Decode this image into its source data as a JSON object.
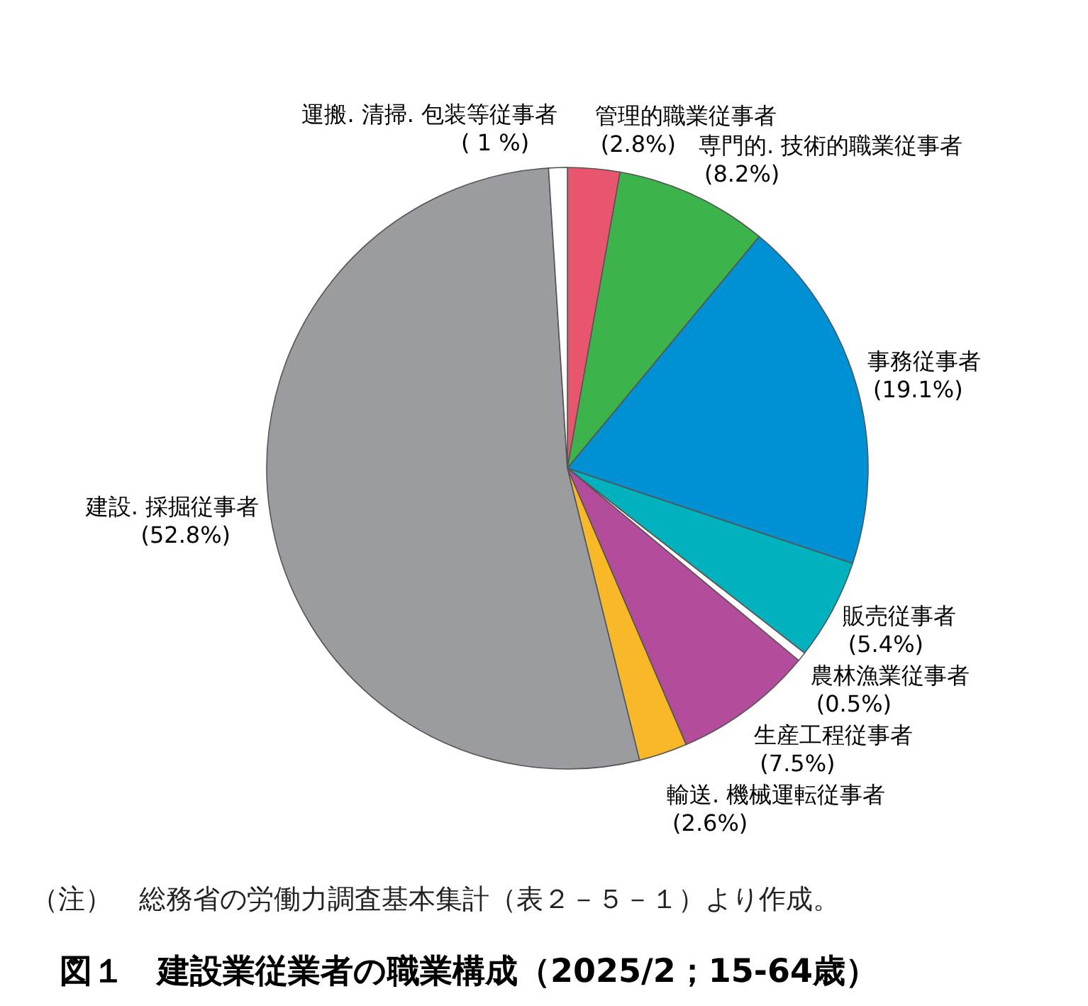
{
  "chart_data": {
    "type": "pie",
    "title": "図１　建設業従業者の職業構成（2025/2；15-64歳）",
    "annotations": [
      "（注）　総務省の労働力調査基本集計（表２－５－１）より作成。"
    ],
    "categories": [
      "管理的職業従事者",
      "専門的. 技術的職業従事者",
      "事務従事者",
      "販売従事者",
      "農林漁業従事者",
      "生産工程従事者",
      "輸送. 機械運転従事者",
      "建設. 採掘従事者",
      "運搬. 清掃. 包装等従事者"
    ],
    "values": [
      2.8,
      8.2,
      19.1,
      5.4,
      0.5,
      7.5,
      2.6,
      52.8,
      1
    ],
    "value_labels": [
      "(2.8%)",
      "(8.2%)",
      "(19.1%)",
      "(5.4%)",
      "(0.5%)",
      "(7.5%)",
      "(2.6%)",
      "(52.8%)",
      "( 1 %)"
    ],
    "colors": [
      "#e8566e",
      "#3cb44b",
      "#0090d4",
      "#00b2bd",
      "#ffffff",
      "#b44c9c",
      "#f8b828",
      "#9a9c9f",
      "#ffffff"
    ]
  }
}
